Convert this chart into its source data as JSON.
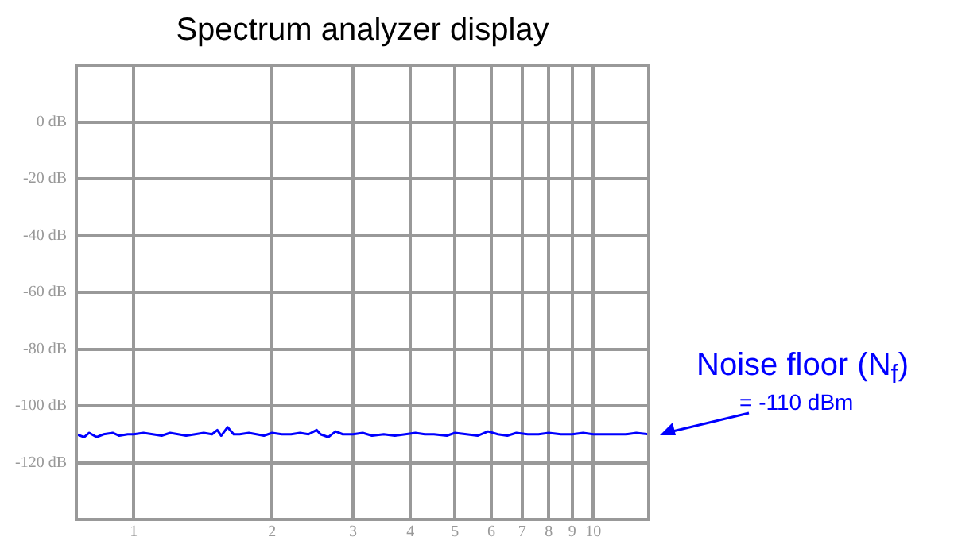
{
  "chart_data": {
    "type": "line",
    "title": "Spectrum analyzer display",
    "x": [
      0.75,
      0.78,
      0.8,
      0.83,
      0.86,
      0.9,
      0.93,
      0.97,
      1.0,
      1.05,
      1.1,
      1.15,
      1.2,
      1.25,
      1.3,
      1.36,
      1.42,
      1.48,
      1.52,
      1.55,
      1.6,
      1.65,
      1.7,
      1.78,
      1.85,
      1.92,
      2.0,
      2.1,
      2.2,
      2.3,
      2.4,
      2.5,
      2.55,
      2.65,
      2.75,
      2.85,
      3.0,
      3.15,
      3.3,
      3.5,
      3.7,
      3.9,
      4.1,
      4.3,
      4.5,
      4.8,
      5.0,
      5.3,
      5.6,
      5.9,
      6.2,
      6.5,
      6.8,
      7.2,
      7.6,
      8.0,
      8.5,
      9.0,
      9.5,
      10.0,
      10.6,
      11.2,
      11.8,
      12.4,
      13.2
    ],
    "series": [
      {
        "color": "#0000ff",
        "values": [
          -110,
          -111,
          -109.5,
          -111,
          -110,
          -109.5,
          -110.5,
          -110,
          -110,
          -109.5,
          -110,
          -110.5,
          -109.5,
          -110,
          -110.5,
          -110,
          -109.5,
          -110,
          -108.5,
          -110.5,
          -107.5,
          -110,
          -110,
          -109.5,
          -110,
          -110.5,
          -109.5,
          -110,
          -110,
          -109.5,
          -110,
          -108.5,
          -110,
          -111,
          -109,
          -110,
          -110,
          -109.5,
          -110.5,
          -110,
          -110.5,
          -110,
          -109.5,
          -110,
          -110,
          -110.5,
          -109.5,
          -110,
          -110.5,
          -109,
          -110,
          -110.5,
          -109.5,
          -110,
          -110,
          -109.5,
          -110,
          -110,
          -109.5,
          -110,
          -110,
          -110,
          -110,
          -109.5,
          -110
        ]
      }
    ],
    "xlim": [
      0.75,
      13.2
    ],
    "ylim": [
      -140,
      20
    ],
    "xticks": [
      1,
      2,
      3,
      4,
      5,
      6,
      7,
      8,
      9,
      10
    ],
    "yticks": [
      {
        "value": -120,
        "label": "-120 dB"
      },
      {
        "value": -100,
        "label": "-100 dB"
      },
      {
        "value": -80,
        "label": "-80 dB"
      },
      {
        "value": -60,
        "label": "-60 dB"
      },
      {
        "value": -40,
        "label": "-40 dB"
      },
      {
        "value": -20,
        "label": "-20 dB"
      },
      {
        "value": 0,
        "label": "0 dB"
      }
    ],
    "log": "x",
    "grid": true,
    "marker": "none",
    "line_style": "solid",
    "annotations": [
      {
        "text": "Noise floor (N$_{f}$)",
        "x": 13.2,
        "y": -110
      },
      "= -110 dBm"
    ]
  }
}
